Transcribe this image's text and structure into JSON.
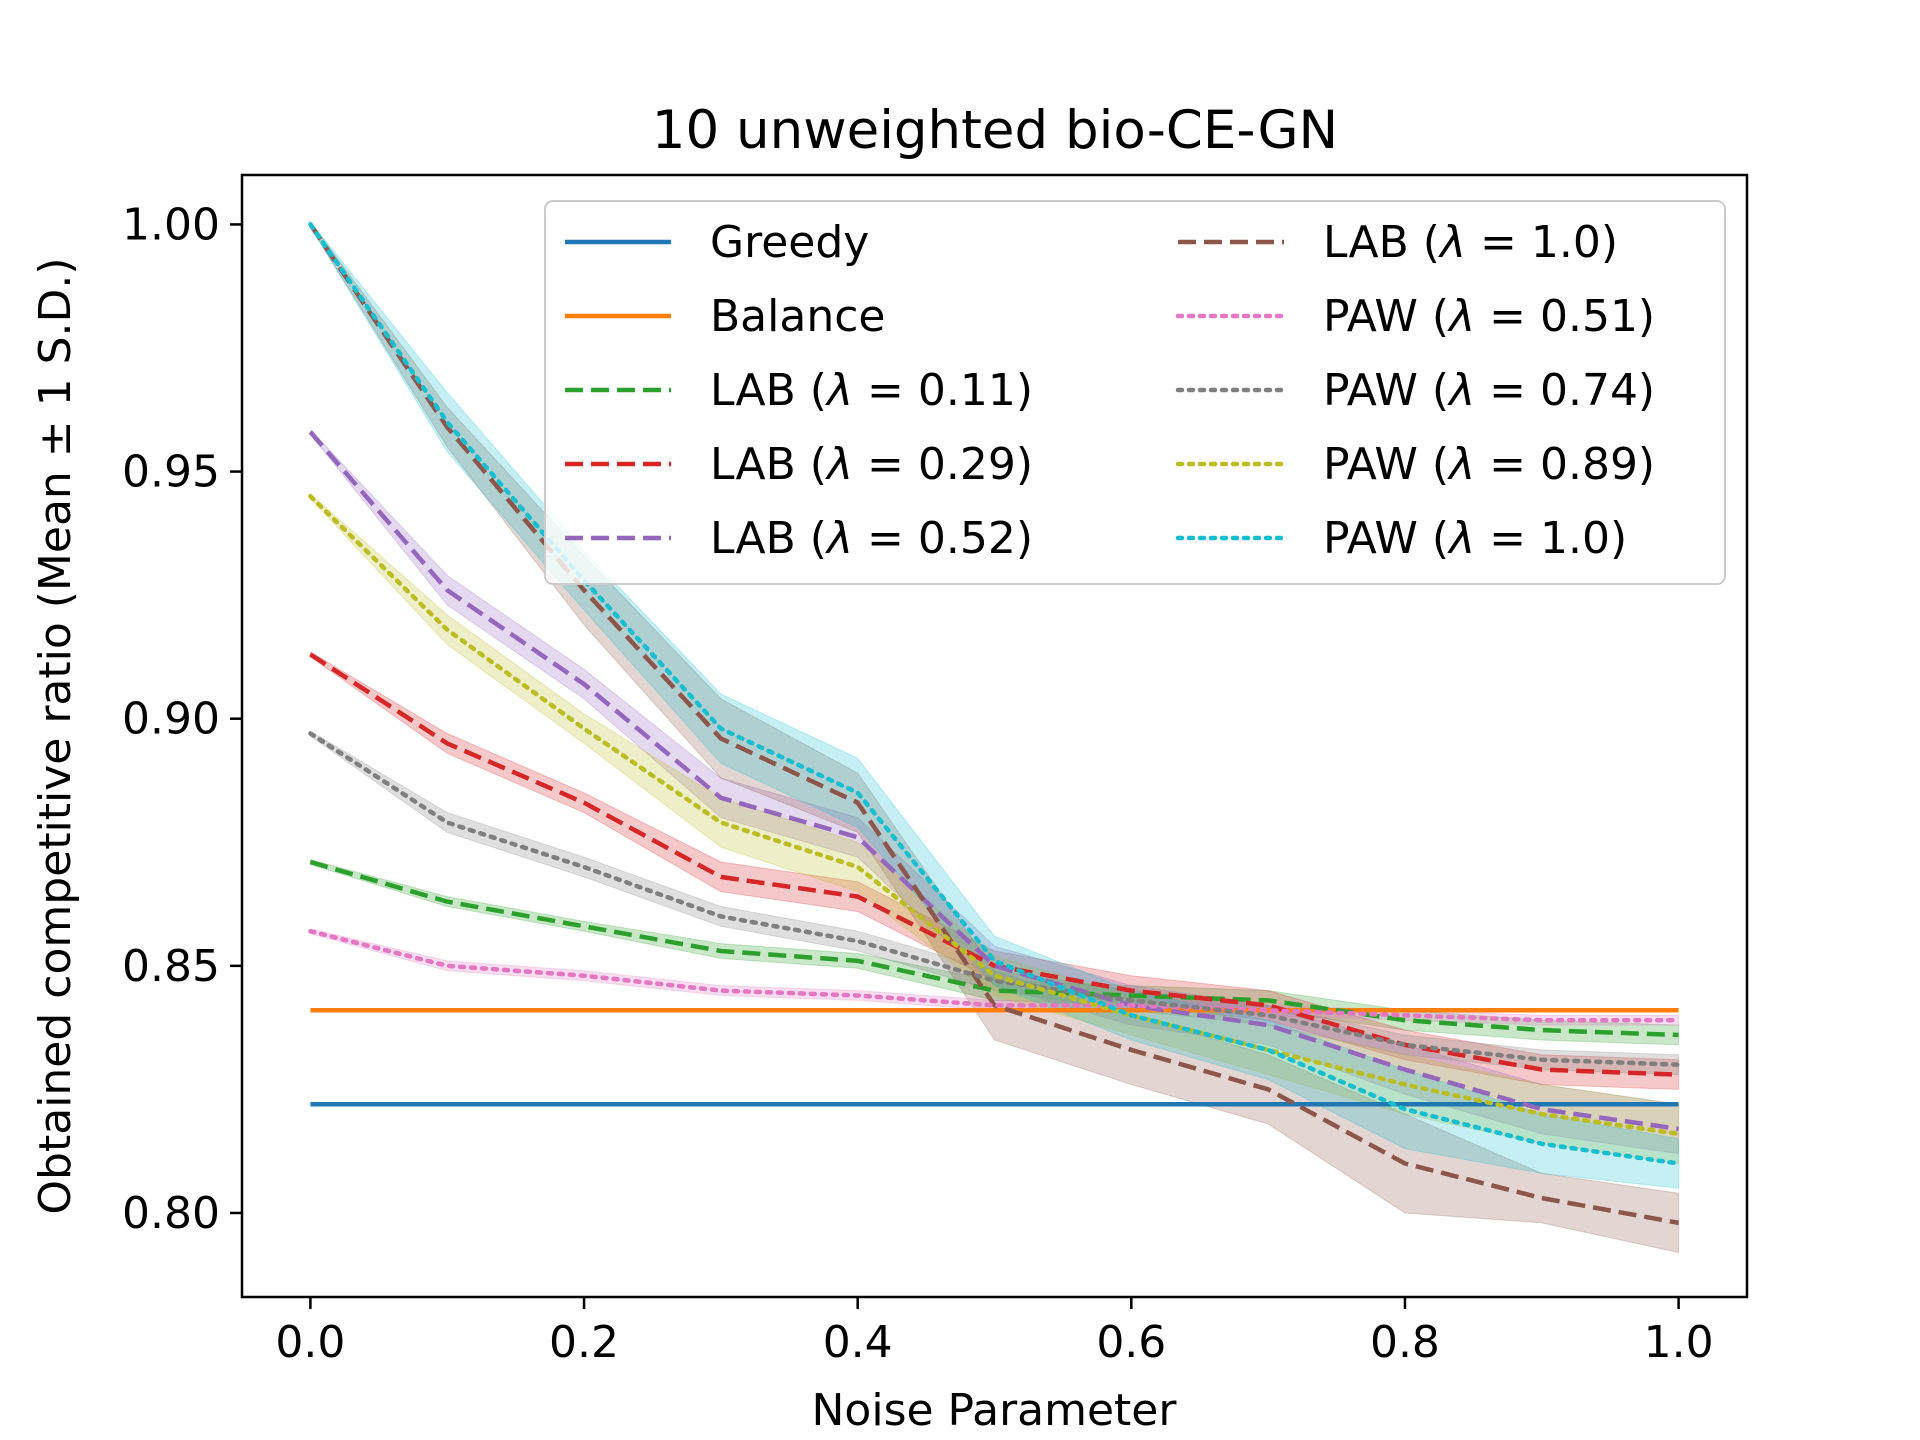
{
  "chart_data": {
    "type": "line",
    "title": "10 unweighted bio-CE-GN",
    "xlabel": "Noise Parameter",
    "ylabel": "Obtained competitive ratio (Mean ± 1 S.D.)",
    "xlim": [
      -0.05,
      1.05
    ],
    "ylim": [
      0.783,
      1.01
    ],
    "xticks": [
      0.0,
      0.2,
      0.4,
      0.6,
      0.8,
      1.0
    ],
    "xtick_labels": [
      "0.0",
      "0.2",
      "0.4",
      "0.6",
      "0.8",
      "1.0"
    ],
    "yticks": [
      0.8,
      0.85,
      0.9,
      0.95,
      1.0
    ],
    "ytick_labels": [
      "0.80",
      "0.85",
      "0.90",
      "0.95",
      "1.00"
    ],
    "x": [
      0.0,
      0.1,
      0.2,
      0.3,
      0.4,
      0.5,
      0.6,
      0.7,
      0.8,
      0.9,
      1.0
    ],
    "legend_placement": "upper-right",
    "series": [
      {
        "name": "Greedy",
        "legend_prefix": "Greedy",
        "lambda": "",
        "color": "#1f77b4",
        "style": "solid",
        "values": [
          0.822,
          0.822,
          0.822,
          0.822,
          0.822,
          0.822,
          0.822,
          0.822,
          0.822,
          0.822,
          0.822
        ],
        "sd": [
          0,
          0,
          0,
          0,
          0,
          0,
          0,
          0,
          0,
          0,
          0
        ]
      },
      {
        "name": "Balance",
        "legend_prefix": "Balance",
        "lambda": "",
        "color": "#ff7f0e",
        "style": "solid",
        "values": [
          0.841,
          0.841,
          0.841,
          0.841,
          0.841,
          0.841,
          0.841,
          0.841,
          0.841,
          0.841,
          0.841
        ],
        "sd": [
          0,
          0,
          0,
          0,
          0,
          0,
          0,
          0,
          0,
          0,
          0
        ]
      },
      {
        "name": "LAB (λ = 0.11)",
        "legend_prefix": "LAB (",
        "lambda": " = 0.11)",
        "color": "#2ca02c",
        "style": "dashed",
        "values": [
          0.871,
          0.863,
          0.858,
          0.853,
          0.851,
          0.845,
          0.844,
          0.843,
          0.839,
          0.837,
          0.836
        ],
        "sd": [
          0.0005,
          0.001,
          0.001,
          0.0015,
          0.0015,
          0.002,
          0.002,
          0.002,
          0.002,
          0.002,
          0.002
        ]
      },
      {
        "name": "LAB (λ = 0.29)",
        "legend_prefix": "LAB (",
        "lambda": " = 0.29)",
        "color": "#d62728",
        "style": "dashed",
        "values": [
          0.913,
          0.895,
          0.883,
          0.868,
          0.864,
          0.85,
          0.845,
          0.842,
          0.834,
          0.829,
          0.828
        ],
        "sd": [
          0.0005,
          0.002,
          0.002,
          0.003,
          0.003,
          0.003,
          0.003,
          0.003,
          0.003,
          0.003,
          0.003
        ]
      },
      {
        "name": "LAB (λ = 0.52)",
        "legend_prefix": "LAB (",
        "lambda": " = 0.52)",
        "color": "#9467bd",
        "style": "dashed",
        "values": [
          0.958,
          0.926,
          0.907,
          0.884,
          0.876,
          0.85,
          0.842,
          0.838,
          0.829,
          0.821,
          0.817
        ],
        "sd": [
          0.0005,
          0.003,
          0.003,
          0.004,
          0.004,
          0.004,
          0.004,
          0.004,
          0.005,
          0.005,
          0.005
        ]
      },
      {
        "name": "LAB (λ = 1.0)",
        "legend_prefix": "LAB (",
        "lambda": " = 1.0)",
        "color": "#8c564b",
        "style": "dashed",
        "values": [
          1.0,
          0.959,
          0.926,
          0.896,
          0.883,
          0.842,
          0.833,
          0.825,
          0.81,
          0.803,
          0.798
        ],
        "sd": [
          0.0005,
          0.004,
          0.007,
          0.008,
          0.006,
          0.007,
          0.007,
          0.007,
          0.01,
          0.005,
          0.006
        ]
      },
      {
        "name": "PAW (λ = 0.51)",
        "legend_prefix": "PAW (",
        "lambda": " = 0.51)",
        "color": "#e377c2",
        "style": "dotted",
        "values": [
          0.857,
          0.85,
          0.848,
          0.845,
          0.844,
          0.842,
          0.842,
          0.841,
          0.84,
          0.839,
          0.839
        ],
        "sd": [
          0.0005,
          0.001,
          0.001,
          0.001,
          0.001,
          0.001,
          0.001,
          0.001,
          0.001,
          0.001,
          0.001
        ]
      },
      {
        "name": "PAW (λ = 0.74)",
        "legend_prefix": "PAW (",
        "lambda": " = 0.74)",
        "color": "#7f7f7f",
        "style": "dotted",
        "values": [
          0.897,
          0.879,
          0.87,
          0.86,
          0.855,
          0.847,
          0.843,
          0.84,
          0.834,
          0.831,
          0.83
        ],
        "sd": [
          0.0005,
          0.002,
          0.002,
          0.002,
          0.002,
          0.002,
          0.002,
          0.002,
          0.002,
          0.002,
          0.002
        ]
      },
      {
        "name": "PAW (λ = 0.89)",
        "legend_prefix": "PAW (",
        "lambda": " = 0.89)",
        "color": "#bcbd22",
        "style": "dotted",
        "values": [
          0.945,
          0.918,
          0.898,
          0.879,
          0.87,
          0.848,
          0.84,
          0.833,
          0.826,
          0.82,
          0.816
        ],
        "sd": [
          0.0005,
          0.003,
          0.003,
          0.005,
          0.005,
          0.004,
          0.004,
          0.005,
          0.006,
          0.006,
          0.006
        ]
      },
      {
        "name": "PAW (λ = 1.0)",
        "legend_prefix": "PAW (",
        "lambda": " = 1.0)",
        "color": "#17becf",
        "style": "dotted",
        "values": [
          1.0,
          0.96,
          0.928,
          0.898,
          0.885,
          0.851,
          0.84,
          0.833,
          0.821,
          0.814,
          0.81
        ],
        "sd": [
          0.0005,
          0.006,
          0.006,
          0.007,
          0.007,
          0.005,
          0.005,
          0.006,
          0.008,
          0.006,
          0.005
        ]
      }
    ]
  }
}
